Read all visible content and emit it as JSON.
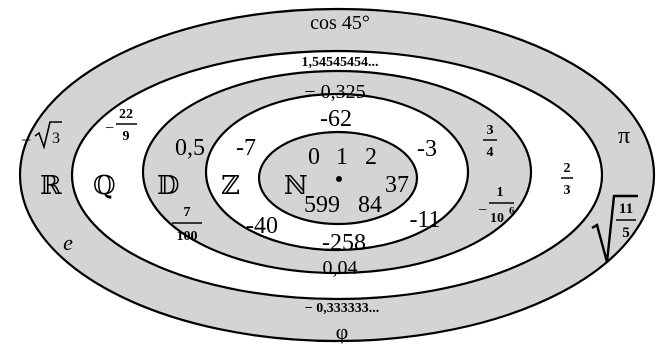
{
  "sets": {
    "R": {
      "symbol": "ℝ",
      "elements": {
        "cos45": "cos 45°",
        "pi": "π",
        "e": "e",
        "phi": "φ",
        "neg_sqrt3_sign": "−",
        "sqrt3_arg": "3",
        "sqrt_11_5_num": "11",
        "sqrt_11_5_den": "5"
      }
    },
    "Q": {
      "symbol": "ℚ",
      "elements": {
        "repeating": "1,54545454...",
        "neg_third": "− 0,333333...",
        "neg_22_9_sign": "−",
        "neg_22_9_num": "22",
        "neg_22_9_den": "9",
        "two_thirds_num": "2",
        "two_thirds_den": "3"
      }
    },
    "D": {
      "symbol": "𝔻",
      "elements": {
        "neg_0325": "− 0,325",
        "half": "0,5",
        "three_quarters_num": "3",
        "three_quarters_den": "4",
        "seven_hundredths_num": "7",
        "seven_hundredths_den": "100",
        "neg_1e6_sign": "−",
        "neg_1e6_num": "1",
        "neg_1e6_den": "10",
        "neg_1e6_exp": "6",
        "d004": "0,04"
      }
    },
    "Z": {
      "symbol": "ℤ",
      "elements": {
        "n62": "-62",
        "n7": "-7",
        "n3": "-3",
        "n40": "-40",
        "n11": "-11",
        "n258": "-258"
      }
    },
    "N": {
      "symbol": "ℕ",
      "elements": {
        "zero": "0",
        "one": "1",
        "two": "2",
        "n599": "599",
        "n84": "84",
        "n37": "37"
      }
    }
  },
  "colors": {
    "ring_fill": "#d4d4d4",
    "ring_gap": "#ffffff",
    "stroke": "#000000"
  }
}
